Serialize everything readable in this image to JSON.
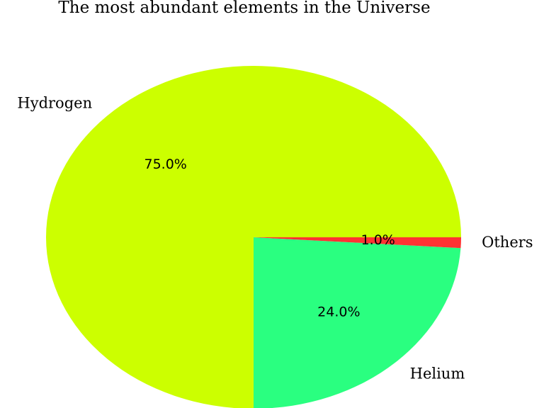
{
  "chart_data": {
    "type": "pie",
    "title": "The most abundant elements in the Universe",
    "categories": [
      "Hydrogen",
      "Helium",
      "Others"
    ],
    "values": [
      75,
      24,
      1
    ],
    "value_labels": [
      "75.0%",
      "24.0%",
      "1.0%"
    ],
    "colors": [
      "#ccff00",
      "#2aff80",
      "#ff3333"
    ]
  }
}
